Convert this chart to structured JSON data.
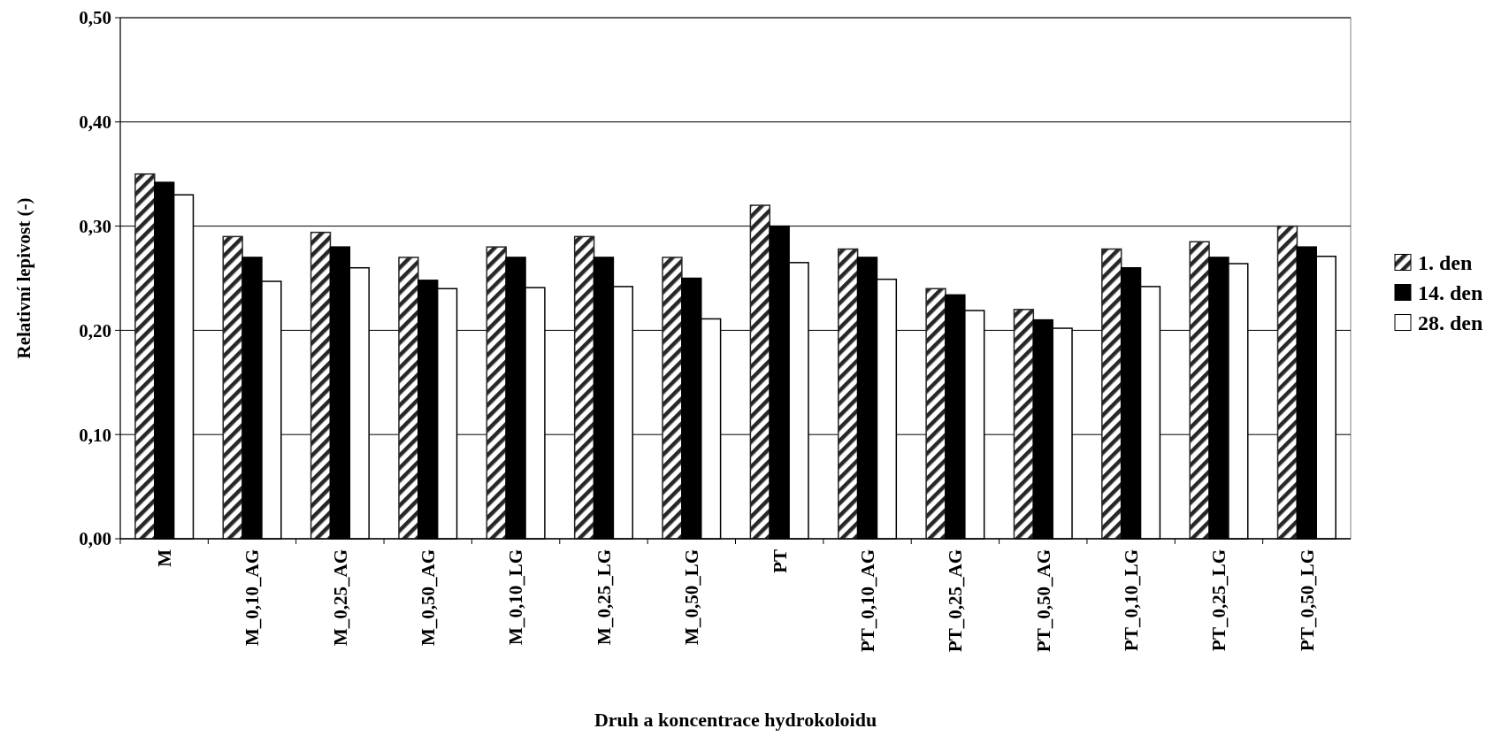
{
  "chart_data": {
    "type": "bar",
    "xlabel": "Druh a koncentrace hydrokoloidu",
    "ylabel": "Relativní lepivost (-)",
    "categories": [
      "M",
      "M_0,10_AG",
      "M_0,25_AG",
      "M_0,50_AG",
      "M_0,10_LG",
      "M_0,25_LG",
      "M_0,50_LG",
      "PT",
      "PT_0,10_AG",
      "PT_0,25_AG",
      "PT_0,50_AG",
      "PT_0,10_LG",
      "PT_0,25_LG",
      "PT_0,50_LG"
    ],
    "series": [
      {
        "name": "1. den",
        "color": "#262626",
        "values": [
          0.35,
          0.29,
          0.294,
          0.27,
          0.28,
          0.29,
          0.27,
          0.32,
          0.278,
          0.24,
          0.22,
          0.278,
          0.285,
          0.3
        ]
      },
      {
        "name": "14. den",
        "color": "#000000",
        "values": [
          0.342,
          0.27,
          0.28,
          0.248,
          0.27,
          0.27,
          0.25,
          0.3,
          0.27,
          0.234,
          0.21,
          0.26,
          0.27,
          0.28
        ]
      },
      {
        "name": "28. den",
        "color": "#ffffff",
        "values": [
          0.33,
          0.247,
          0.26,
          0.24,
          0.241,
          0.242,
          0.211,
          0.265,
          0.249,
          0.219,
          0.202,
          0.242,
          0.264,
          0.271
        ]
      }
    ],
    "ylim": [
      0,
      0.5
    ],
    "yticks": [
      {
        "value": 0,
        "label": "0,00"
      },
      {
        "value": 0.1,
        "label": "0,10"
      },
      {
        "value": 0.2,
        "label": "0,20"
      },
      {
        "value": 0.3,
        "label": "0,30"
      },
      {
        "value": 0.4,
        "label": "0,40"
      },
      {
        "value": 0.5,
        "label": "0,50"
      }
    ],
    "grid": "y",
    "legend": "right"
  }
}
